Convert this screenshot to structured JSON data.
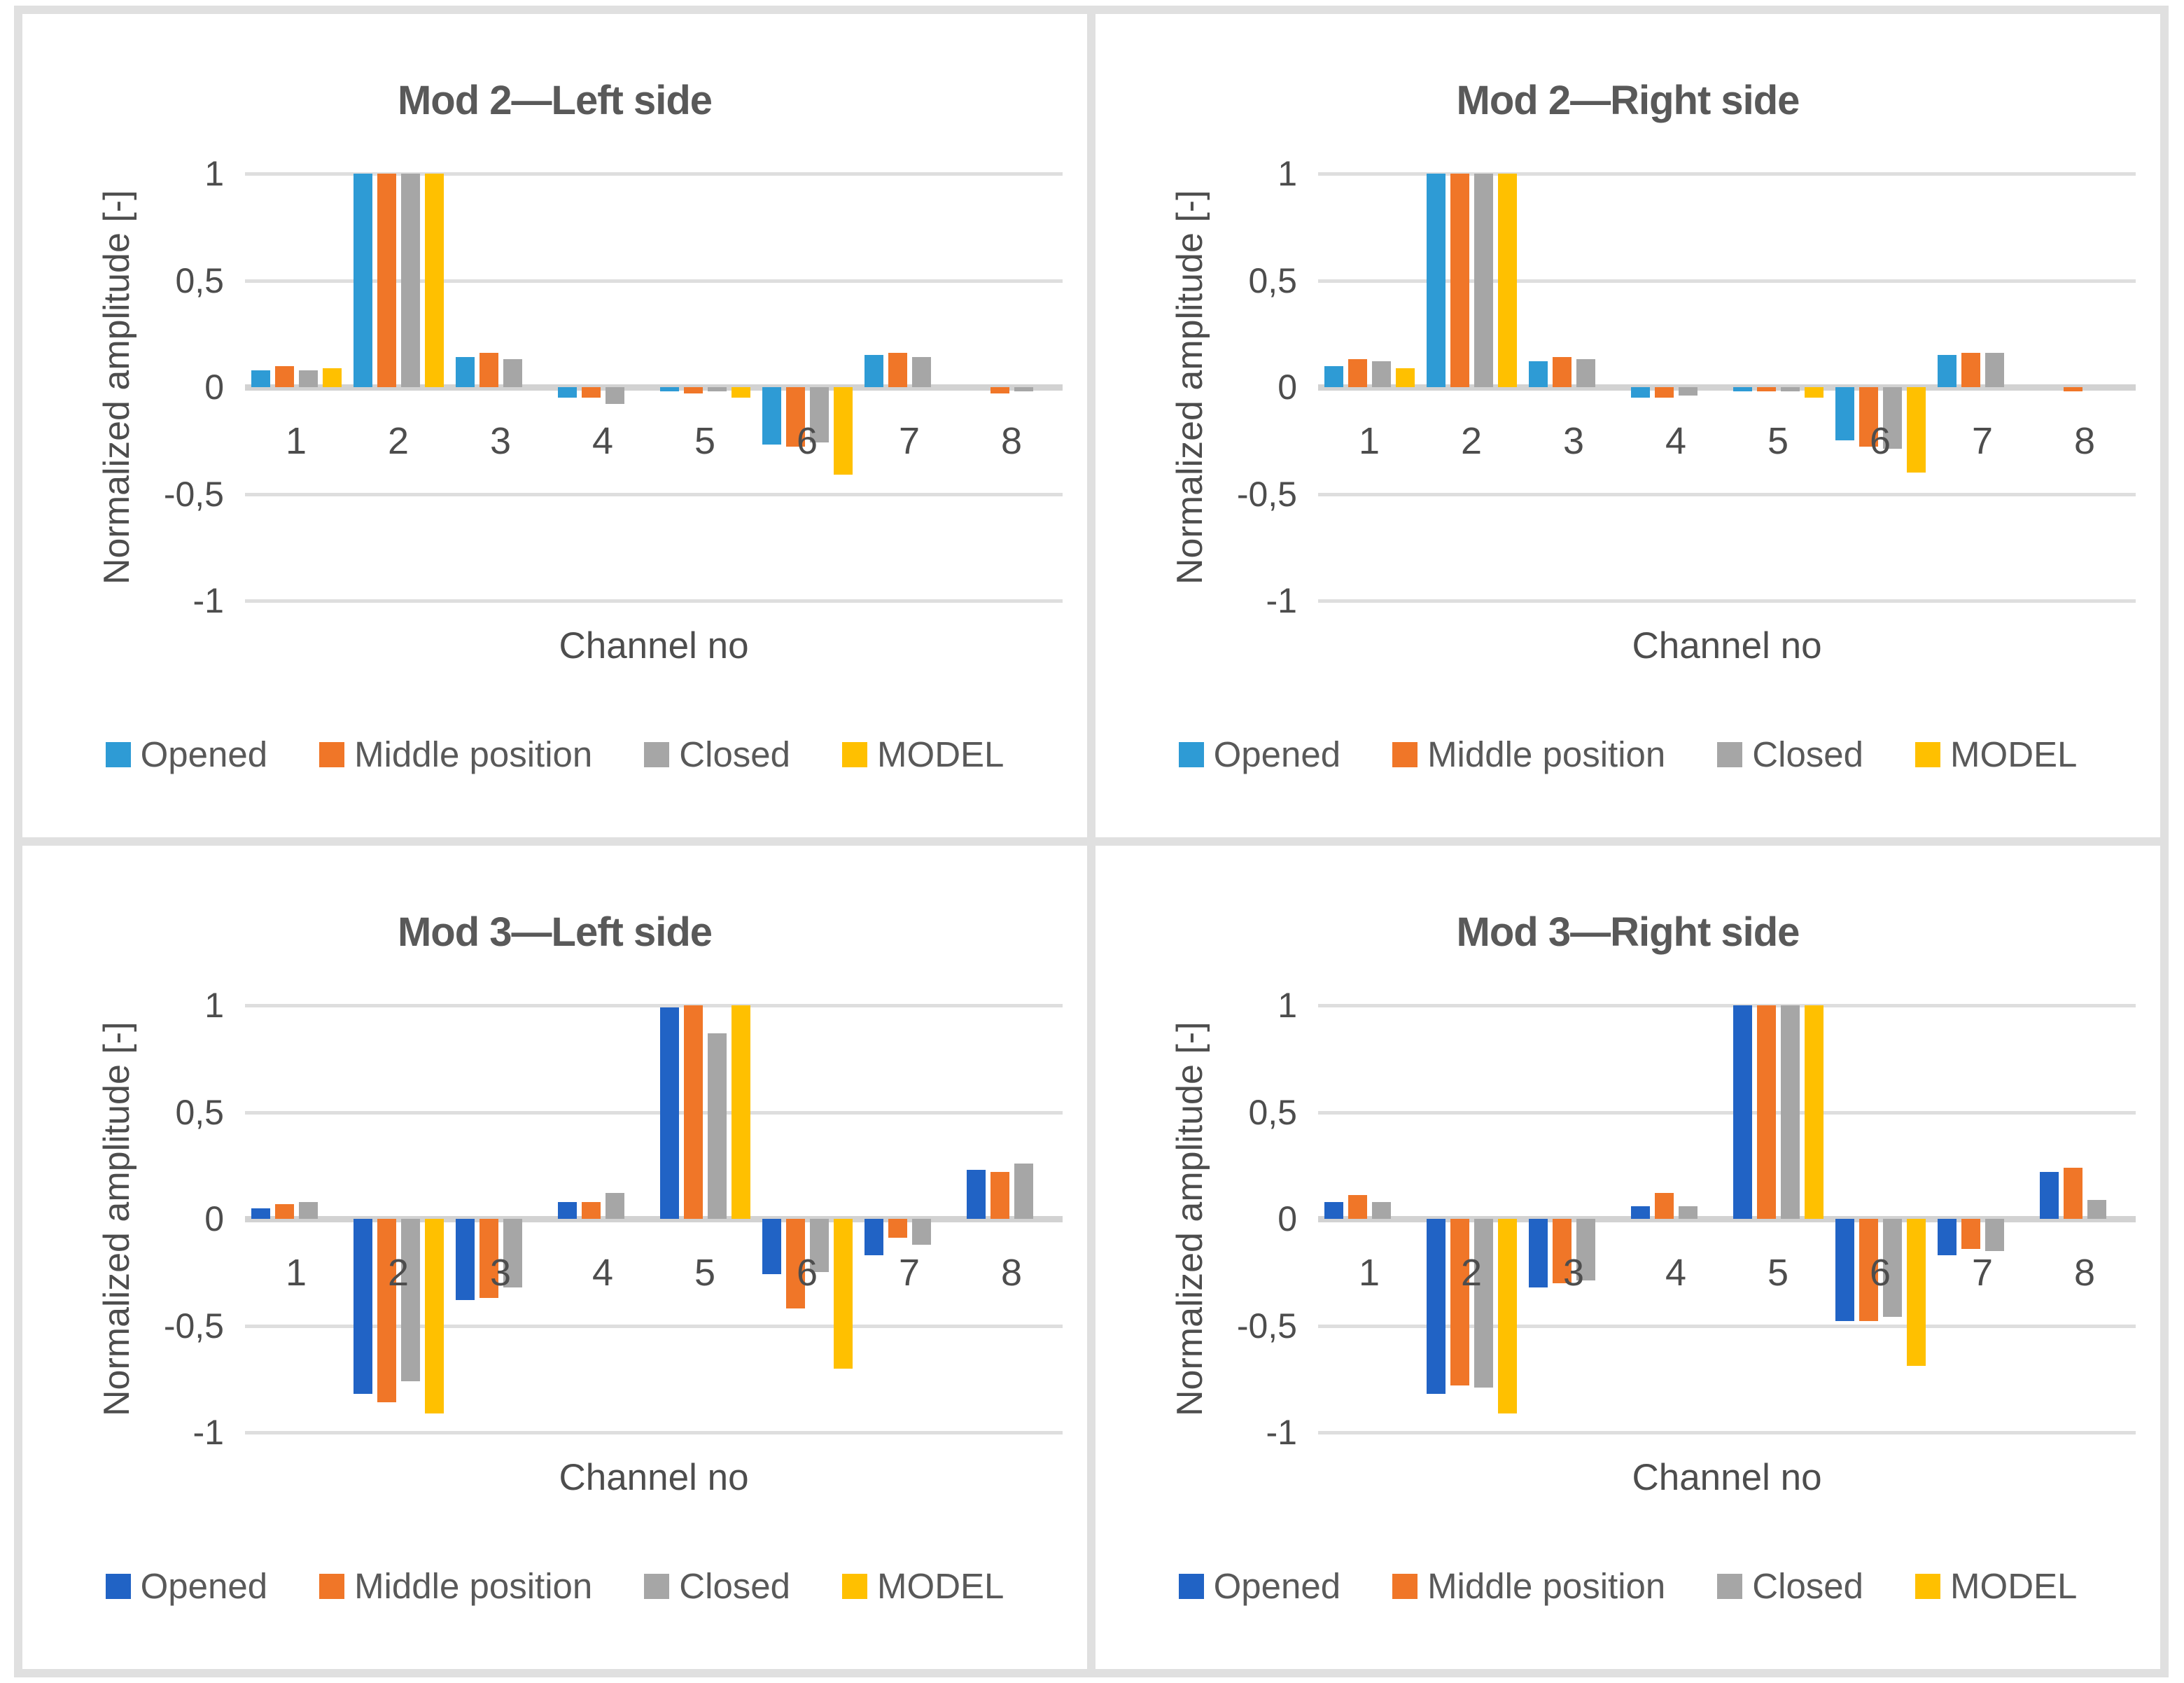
{
  "colors": {
    "frame_border": "#E0E0E0",
    "gridline": "#DEDEDE",
    "zero_axis": "#D2D2D2",
    "title_text": "#595959",
    "axis_text": "#4D4D4D",
    "opened_top": "#2E9BD5",
    "opened_bottom": "#2163C5",
    "middle_position": "#F07628",
    "closed": "#A6A6A6",
    "model": "#FFC000"
  },
  "chart_data": [
    {
      "type": "bar",
      "title": "Mod 2—Left side",
      "xlabel": "Channel no",
      "ylabel": "Normalized amplitude [-]",
      "ylim": [
        -1,
        1
      ],
      "grid": true,
      "legend_position": "bottom",
      "categories": [
        "1",
        "2",
        "3",
        "4",
        "5",
        "6",
        "7",
        "8"
      ],
      "y_ticks": [
        {
          "value": 1,
          "label": "1"
        },
        {
          "value": 0.5,
          "label": "0,5"
        },
        {
          "value": 0,
          "label": "0"
        },
        {
          "value": -0.5,
          "label": "-0,5"
        },
        {
          "value": -1,
          "label": "-1"
        }
      ],
      "series": [
        {
          "name": "Opened",
          "color": "#2E9BD5",
          "values": [
            0.08,
            1,
            0.14,
            -0.05,
            -0.02,
            -0.27,
            0.15,
            0
          ]
        },
        {
          "name": "Middle position",
          "color": "#F07628",
          "values": [
            0.1,
            1,
            0.16,
            -0.05,
            -0.03,
            -0.28,
            0.16,
            -0.03
          ]
        },
        {
          "name": "Closed",
          "color": "#A6A6A6",
          "values": [
            0.08,
            1,
            0.13,
            -0.08,
            -0.02,
            -0.26,
            0.14,
            -0.02
          ]
        },
        {
          "name": "MODEL",
          "color": "#FFC000",
          "values": [
            0.09,
            1,
            0,
            0,
            -0.05,
            -0.41,
            0,
            0
          ]
        }
      ]
    },
    {
      "type": "bar",
      "title": "Mod 2—Right side",
      "xlabel": "Channel no",
      "ylabel": "Normalized amplitude [-]",
      "ylim": [
        -1,
        1
      ],
      "grid": true,
      "legend_position": "bottom",
      "categories": [
        "1",
        "2",
        "3",
        "4",
        "5",
        "6",
        "7",
        "8"
      ],
      "y_ticks": [
        {
          "value": 1,
          "label": "1"
        },
        {
          "value": 0.5,
          "label": "0,5"
        },
        {
          "value": 0,
          "label": "0"
        },
        {
          "value": -0.5,
          "label": "-0,5"
        },
        {
          "value": -1,
          "label": "-1"
        }
      ],
      "series": [
        {
          "name": "Opened",
          "color": "#2E9BD5",
          "values": [
            0.1,
            1,
            0.12,
            -0.05,
            -0.02,
            -0.25,
            0.15,
            0
          ]
        },
        {
          "name": "Middle position",
          "color": "#F07628",
          "values": [
            0.13,
            1,
            0.14,
            -0.05,
            -0.02,
            -0.28,
            0.16,
            -0.02
          ]
        },
        {
          "name": "Closed",
          "color": "#A6A6A6",
          "values": [
            0.12,
            1,
            0.13,
            -0.04,
            -0.02,
            -0.29,
            0.16,
            0
          ]
        },
        {
          "name": "MODEL",
          "color": "#FFC000",
          "values": [
            0.09,
            1,
            0,
            0,
            -0.05,
            -0.4,
            0,
            0
          ]
        }
      ]
    },
    {
      "type": "bar",
      "title": "Mod 3—Left side",
      "xlabel": "Channel no",
      "ylabel": "Normalized amplitude [-]",
      "ylim": [
        -1,
        1
      ],
      "grid": true,
      "legend_position": "bottom",
      "categories": [
        "1",
        "2",
        "3",
        "4",
        "5",
        "6",
        "7",
        "8"
      ],
      "y_ticks": [
        {
          "value": 1,
          "label": "1"
        },
        {
          "value": 0.5,
          "label": "0,5"
        },
        {
          "value": 0,
          "label": "0"
        },
        {
          "value": -0.5,
          "label": "-0,5"
        },
        {
          "value": -1,
          "label": "-1"
        }
      ],
      "series": [
        {
          "name": "Opened",
          "color": "#2163C5",
          "values": [
            0.05,
            -0.82,
            -0.38,
            0.08,
            0.99,
            -0.26,
            -0.17,
            0.23
          ]
        },
        {
          "name": "Middle position",
          "color": "#F07628",
          "values": [
            0.07,
            -0.86,
            -0.37,
            0.08,
            1,
            -0.42,
            -0.09,
            0.22
          ]
        },
        {
          "name": "Closed",
          "color": "#A6A6A6",
          "values": [
            0.08,
            -0.76,
            -0.32,
            0.12,
            0.87,
            -0.25,
            -0.12,
            0.26
          ]
        },
        {
          "name": "MODEL",
          "color": "#FFC000",
          "values": [
            0,
            -0.91,
            0,
            0,
            1,
            -0.7,
            0,
            0
          ]
        }
      ]
    },
    {
      "type": "bar",
      "title": "Mod 3—Right side",
      "xlabel": "Channel no",
      "ylabel": "Normalized amplitude [-]",
      "ylim": [
        -1,
        1
      ],
      "grid": true,
      "legend_position": "bottom",
      "categories": [
        "1",
        "2",
        "3",
        "4",
        "5",
        "6",
        "7",
        "8"
      ],
      "y_ticks": [
        {
          "value": 1,
          "label": "1"
        },
        {
          "value": 0.5,
          "label": "0,5"
        },
        {
          "value": 0,
          "label": "0"
        },
        {
          "value": -0.5,
          "label": "-0,5"
        },
        {
          "value": -1,
          "label": "-1"
        }
      ],
      "series": [
        {
          "name": "Opened",
          "color": "#2163C5",
          "values": [
            0.08,
            -0.82,
            -0.32,
            0.06,
            1,
            -0.48,
            -0.17,
            0.22
          ]
        },
        {
          "name": "Middle position",
          "color": "#F07628",
          "values": [
            0.11,
            -0.78,
            -0.3,
            0.12,
            1,
            -0.48,
            -0.14,
            0.24
          ]
        },
        {
          "name": "Closed",
          "color": "#A6A6A6",
          "values": [
            0.08,
            -0.79,
            -0.29,
            0.06,
            1,
            -0.46,
            -0.15,
            0.09
          ]
        },
        {
          "name": "MODEL",
          "color": "#FFC000",
          "values": [
            0,
            -0.91,
            0,
            0,
            1,
            -0.69,
            0,
            0
          ]
        }
      ]
    }
  ]
}
